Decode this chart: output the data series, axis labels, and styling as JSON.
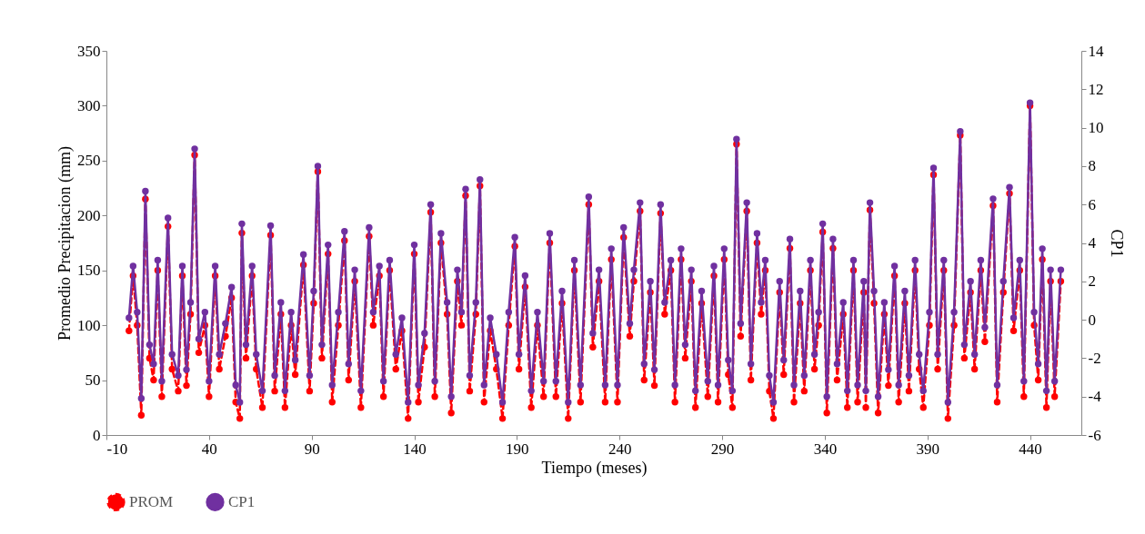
{
  "chart_data": {
    "type": "line",
    "xlabel": "Tiempo (meses)",
    "ylabel": "Promedio Precipitacion (mm)",
    "y2label": "CP1",
    "x": [
      1,
      3,
      5,
      7,
      9,
      11,
      13,
      15,
      17,
      20,
      22,
      25,
      27,
      29,
      31,
      33,
      35,
      38,
      40,
      43,
      45,
      48,
      51,
      53,
      55,
      56,
      58,
      61,
      63,
      66,
      70,
      72,
      75,
      77,
      80,
      82,
      86,
      89,
      91,
      93,
      95,
      98,
      100,
      103,
      106,
      108,
      111,
      114,
      118,
      120,
      123,
      125,
      128,
      131,
      134,
      137,
      140,
      142,
      145,
      148,
      150,
      153,
      156,
      158,
      161,
      163,
      165,
      167,
      170,
      172,
      174,
      177,
      180,
      183,
      186,
      189,
      191,
      194,
      197,
      200,
      203,
      206,
      209,
      212,
      215,
      218,
      221,
      225,
      227,
      230,
      233,
      236,
      239,
      242,
      245,
      247,
      250,
      252,
      255,
      257,
      260,
      262,
      265,
      267,
      270,
      272,
      275,
      277,
      280,
      283,
      286,
      288,
      291,
      293,
      295,
      297,
      299,
      302,
      304,
      307,
      309,
      311,
      313,
      315,
      318,
      320,
      323,
      325,
      328,
      330,
      333,
      335,
      337,
      339,
      341,
      344,
      346,
      349,
      351,
      354,
      356,
      359,
      360,
      362,
      364,
      366,
      369,
      371,
      374,
      376,
      379,
      381,
      384,
      386,
      388,
      391,
      393,
      395,
      398,
      400,
      403,
      406,
      408,
      411,
      413,
      416,
      418,
      422,
      424,
      427,
      430,
      432,
      435,
      437,
      440,
      442,
      444,
      446,
      448,
      450,
      452,
      455
    ],
    "series": [
      {
        "name": "PROM",
        "color": "#ff0000",
        "line_style": "dashed",
        "values": [
          95,
          145,
          100,
          18,
          215,
          70,
          50,
          150,
          35,
          190,
          60,
          40,
          145,
          45,
          110,
          255,
          75,
          100,
          35,
          145,
          60,
          90,
          125,
          30,
          15,
          184,
          70,
          145,
          60,
          25,
          182,
          40,
          110,
          25,
          100,
          55,
          155,
          40,
          120,
          240,
          70,
          165,
          30,
          100,
          177,
          50,
          140,
          25,
          181,
          100,
          145,
          35,
          150,
          60,
          95,
          15,
          165,
          30,
          80,
          203,
          35,
          175,
          110,
          20,
          140,
          100,
          218,
          40,
          110,
          227,
          30,
          95,
          60,
          15,
          100,
          172,
          60,
          135,
          25,
          100,
          35,
          175,
          35,
          120,
          15,
          150,
          30,
          210,
          80,
          140,
          30,
          160,
          30,
          180,
          90,
          140,
          204,
          50,
          130,
          45,
          202,
          110,
          150,
          30,
          160,
          70,
          140,
          25,
          120,
          35,
          145,
          30,
          160,
          55,
          25,
          265,
          90,
          204,
          50,
          175,
          110,
          150,
          40,
          15,
          130,
          55,
          170,
          30,
          120,
          40,
          150,
          60,
          100,
          185,
          20,
          170,
          50,
          110,
          25,
          150,
          30,
          130,
          25,
          205,
          120,
          20,
          110,
          45,
          145,
          30,
          120,
          40,
          150,
          60,
          25,
          100,
          237,
          60,
          150,
          15,
          100,
          273,
          70,
          130,
          60,
          150,
          85,
          209,
          30,
          130,
          220,
          95,
          150,
          35,
          300,
          100,
          50,
          160,
          25,
          140,
          35,
          140
        ]
      },
      {
        "name": "CP1",
        "color": "#7030a0",
        "line_style": "solid",
        "axis": "y2",
        "values": [
          0.1,
          2.8,
          0.4,
          -4.1,
          6.7,
          -1.3,
          -2.3,
          3.1,
          -3.2,
          5.3,
          -1.8,
          -2.9,
          2.8,
          -2.6,
          0.9,
          8.9,
          -1.0,
          0.4,
          -3.2,
          2.8,
          -1.8,
          -0.2,
          1.7,
          -3.4,
          -4.3,
          5.0,
          -1.3,
          2.8,
          -1.8,
          -3.7,
          4.9,
          -2.9,
          0.9,
          -3.7,
          0.4,
          -2.1,
          3.4,
          -2.9,
          1.5,
          8.0,
          -1.3,
          3.9,
          -3.4,
          0.4,
          4.6,
          -2.3,
          2.6,
          -3.7,
          4.8,
          0.4,
          2.8,
          -3.2,
          3.1,
          -1.8,
          0.1,
          -4.3,
          3.9,
          -3.4,
          -0.7,
          6.0,
          -3.2,
          4.5,
          0.9,
          -4.0,
          2.6,
          0.4,
          6.8,
          -2.9,
          0.9,
          7.3,
          -3.4,
          0.1,
          -1.8,
          -4.3,
          0.4,
          4.3,
          -1.8,
          2.3,
          -3.7,
          0.4,
          -3.2,
          4.5,
          -3.2,
          1.5,
          -4.3,
          3.1,
          -3.4,
          6.4,
          -0.7,
          2.6,
          -3.4,
          3.7,
          -3.4,
          4.8,
          -0.2,
          2.6,
          6.1,
          -2.3,
          2.0,
          -2.6,
          6.0,
          0.9,
          3.1,
          -3.4,
          3.7,
          -1.3,
          2.6,
          -3.7,
          1.5,
          -3.2,
          2.8,
          -3.4,
          3.7,
          -2.1,
          -3.7,
          9.4,
          -0.2,
          6.1,
          -2.3,
          4.5,
          0.9,
          3.1,
          -2.9,
          -4.3,
          2.0,
          -2.1,
          4.2,
          -3.4,
          1.5,
          -2.9,
          3.1,
          -1.8,
          0.4,
          5.0,
          -4.0,
          4.2,
          -2.3,
          0.9,
          -3.7,
          3.1,
          -3.4,
          2.0,
          -3.7,
          6.1,
          1.5,
          -4.0,
          0.9,
          -2.6,
          2.8,
          -3.4,
          1.5,
          -2.9,
          3.1,
          -1.8,
          -3.7,
          0.4,
          7.9,
          -1.8,
          3.1,
          -4.3,
          0.4,
          9.8,
          -1.3,
          2.0,
          -1.8,
          3.1,
          -0.4,
          6.3,
          -3.4,
          2.0,
          6.9,
          0.1,
          3.1,
          -3.2,
          11.3,
          0.4,
          -2.3,
          3.7,
          -3.7,
          2.6,
          -3.2,
          2.6
        ]
      }
    ],
    "xlim": [
      -10,
      465
    ],
    "xticks": [
      -10,
      40,
      90,
      140,
      190,
      240,
      290,
      340,
      390,
      440
    ],
    "ylim": [
      0,
      350
    ],
    "yticks": [
      0,
      50,
      100,
      150,
      200,
      250,
      300,
      350
    ],
    "y2lim": [
      -6,
      14
    ],
    "y2ticks": [
      -6,
      -4,
      -2,
      0,
      2,
      4,
      6,
      8,
      10,
      12,
      14
    ],
    "grid": false,
    "legend": "bottom",
    "marker": "circle"
  }
}
